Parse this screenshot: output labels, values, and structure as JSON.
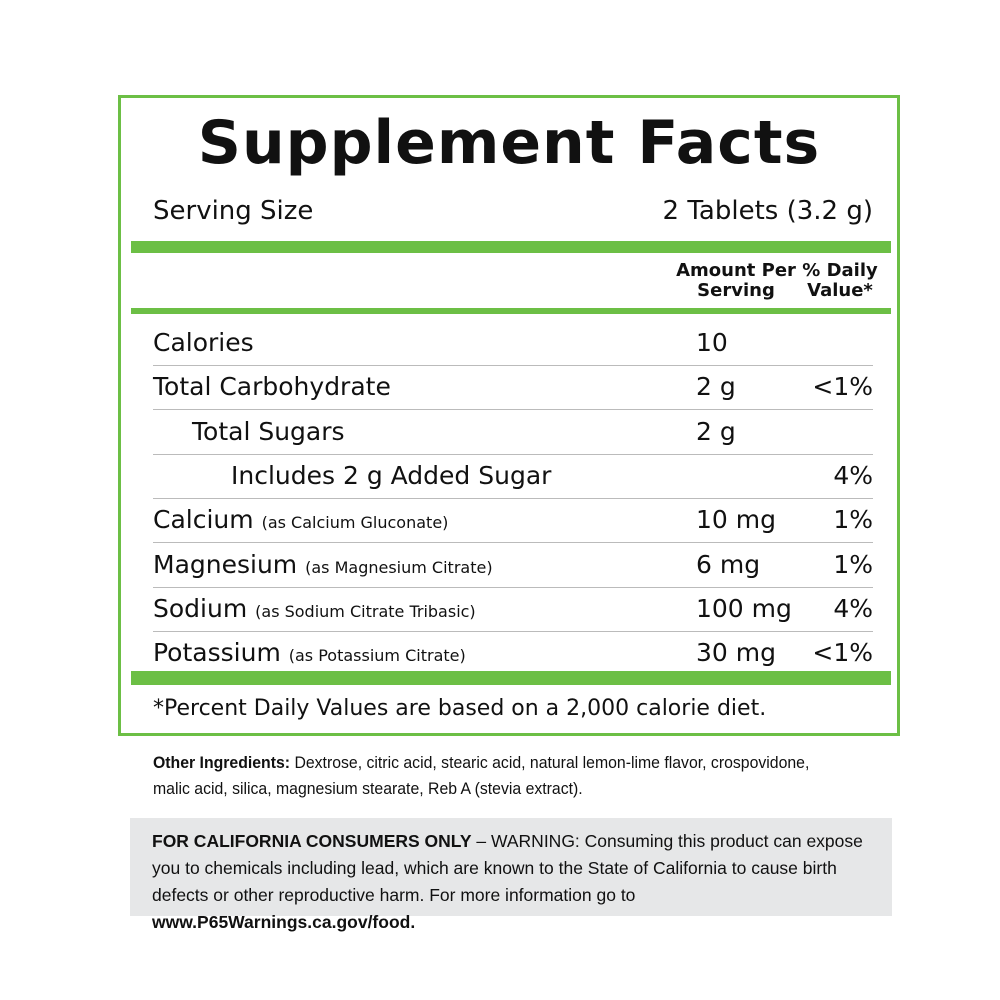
{
  "title": "Supplement Facts",
  "serving_label": "Serving Size",
  "serving_value": "2 Tablets (3.2 g)",
  "col_amount": "Amount Per Serving",
  "col_dv": "% Daily Value*",
  "rows": [
    {
      "name": "Calories",
      "source": "",
      "amount": "10",
      "dv": "",
      "indent": 0
    },
    {
      "name": "Total Carbohydrate",
      "source": "",
      "amount": "2 g",
      "dv": "<1%",
      "indent": 0
    },
    {
      "name": "Total Sugars",
      "source": "",
      "amount": "2 g",
      "dv": "",
      "indent": 1
    },
    {
      "name": "Includes 2 g Added Sugar",
      "source": "",
      "amount": "",
      "dv": "4%",
      "indent": 2
    },
    {
      "name": "Calcium",
      "source": "(as Calcium Gluconate)",
      "amount": "10 mg",
      "dv": "1%",
      "indent": 0
    },
    {
      "name": "Magnesium",
      "source": "(as Magnesium Citrate)",
      "amount": "6 mg",
      "dv": "1%",
      "indent": 0
    },
    {
      "name": "Sodium",
      "source": "(as Sodium Citrate Tribasic)",
      "amount": "100 mg",
      "dv": "4%",
      "indent": 0
    },
    {
      "name": "Potassium",
      "source": "(as Potassium Citrate)",
      "amount": "30 mg",
      "dv": "<1%",
      "indent": 0
    }
  ],
  "footnote": "*Percent Daily Values are based on a 2,000 calorie diet.",
  "ingredients_label": "Other Ingredients:",
  "ingredients": "Dextrose, citric acid, stearic acid, natural lemon-lime flavor, crospovidone, malic acid, silica, magnesium stearate, Reb A (stevia extract).",
  "warning_label": "FOR CALIFORNIA CONSUMERS ONLY",
  "warning": " – WARNING: Consuming this product can expose you to chemicals including lead, which are known to the State of California to cause birth defects or other reproductive harm. For more information go to ",
  "warning_link": "www.P65Warnings.ca.gov/food.",
  "colors": {
    "accent": "#6cbf45",
    "warning_bg": "#e6e7e8"
  }
}
